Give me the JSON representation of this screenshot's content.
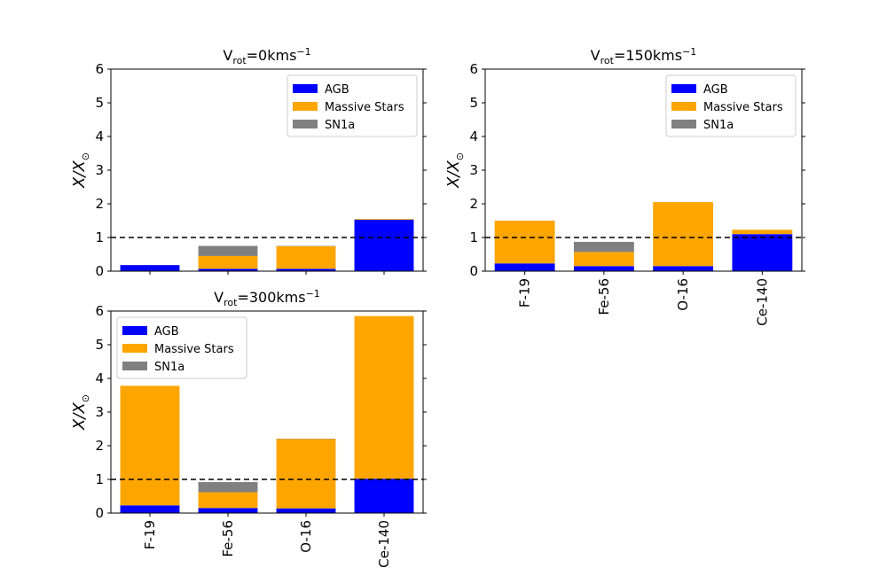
{
  "colors": {
    "AGB": "#0000ff",
    "Massive Stars": "#ffa500",
    "SN1a": "#808080",
    "reference_line": "#000000"
  },
  "chart_data": [
    {
      "type": "bar",
      "stacked": true,
      "title": {
        "main": "V",
        "sub": "rot",
        "mid": "=0kms",
        "sup": "−1"
      },
      "ylabel": "X/X⊙",
      "ylim": [
        0,
        6
      ],
      "yticks": [
        "0",
        "1",
        "2",
        "3",
        "4",
        "5",
        "6"
      ],
      "categories": [
        "F-19",
        "Fe-56",
        "O-16",
        "Ce-140"
      ],
      "show_xtick_labels": false,
      "legend_loc": "upper right",
      "reference_line": 1,
      "series": [
        {
          "name": "AGB",
          "values": [
            0.18,
            0.07,
            0.07,
            1.53
          ]
        },
        {
          "name": "Massive Stars",
          "values": [
            0.0,
            0.38,
            0.67,
            0.02
          ]
        },
        {
          "name": "SN1a",
          "values": [
            0.0,
            0.3,
            0.01,
            0.0
          ]
        }
      ]
    },
    {
      "type": "bar",
      "stacked": true,
      "title": {
        "main": "V",
        "sub": "rot",
        "mid": "=150kms",
        "sup": "−1"
      },
      "ylabel": "X/X⊙",
      "ylim": [
        0,
        6
      ],
      "yticks": [
        "0",
        "1",
        "2",
        "3",
        "4",
        "5",
        "6"
      ],
      "categories": [
        "F-19",
        "Fe-56",
        "O-16",
        "Ce-140"
      ],
      "show_xtick_labels": true,
      "legend_loc": "upper right",
      "reference_line": 1,
      "series": [
        {
          "name": "AGB",
          "values": [
            0.23,
            0.15,
            0.15,
            1.1
          ]
        },
        {
          "name": "Massive Stars",
          "values": [
            1.27,
            0.42,
            1.9,
            0.13
          ]
        },
        {
          "name": "SN1a",
          "values": [
            0.0,
            0.3,
            0.0,
            0.0
          ]
        }
      ]
    },
    {
      "type": "bar",
      "stacked": true,
      "title": {
        "main": "V",
        "sub": "rot",
        "mid": "=300kms",
        "sup": "−1"
      },
      "ylabel": "X/X⊙",
      "ylim": [
        0,
        6
      ],
      "yticks": [
        "0",
        "1",
        "2",
        "3",
        "4",
        "5",
        "6"
      ],
      "categories": [
        "F-19",
        "Fe-56",
        "O-16",
        "Ce-140"
      ],
      "show_xtick_labels": true,
      "legend_loc": "upper left",
      "reference_line": 1,
      "series": [
        {
          "name": "AGB",
          "values": [
            0.23,
            0.15,
            0.14,
            1.02
          ]
        },
        {
          "name": "Massive Stars",
          "values": [
            3.55,
            0.47,
            2.06,
            4.83
          ]
        },
        {
          "name": "SN1a",
          "values": [
            0.0,
            0.3,
            0.01,
            0.0
          ]
        }
      ]
    }
  ]
}
